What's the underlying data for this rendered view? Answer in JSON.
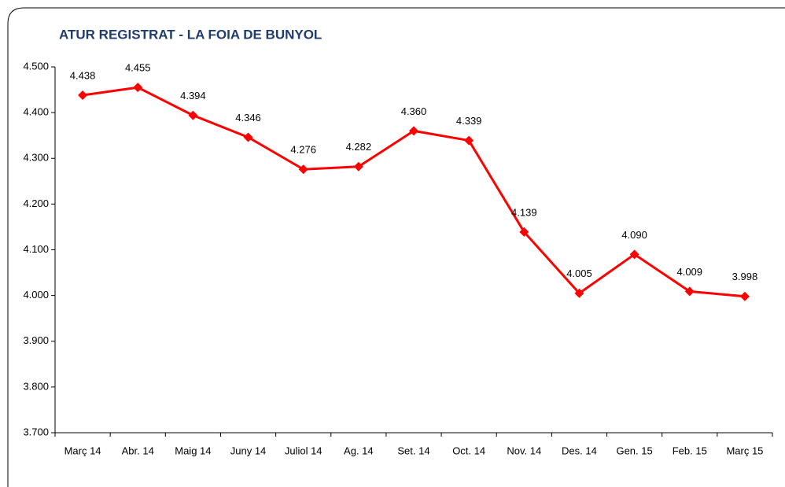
{
  "chart_data": {
    "type": "line",
    "title": "ATUR REGISTRAT - LA FOIA DE BUNYOL",
    "categories": [
      "Març 14",
      "Abr. 14",
      "Maig 14",
      "Juny 14",
      "Juliol 14",
      "Ag. 14",
      "Set. 14",
      "Oct. 14",
      "Nov. 14",
      "Des. 14",
      "Gen. 15",
      "Feb. 15",
      "Març 15"
    ],
    "series": [
      {
        "color": "#ff0000",
        "values": [
          4438,
          4455,
          4394,
          4346,
          4276,
          4282,
          4360,
          4339,
          4139,
          4005,
          4090,
          4009,
          3998
        ],
        "value_labels": [
          "4.438",
          "4.455",
          "4.394",
          "4.346",
          "4.276",
          "4.282",
          "4.360",
          "4.339",
          "4.139",
          "4.005",
          "4.090",
          "4.009",
          "3.998"
        ]
      }
    ],
    "ylim": [
      3700,
      4500
    ],
    "yticks": [
      {
        "value": 3700,
        "label": "3.700"
      },
      {
        "value": 3800,
        "label": "3.800"
      },
      {
        "value": 3900,
        "label": "3.900"
      },
      {
        "value": 4000,
        "label": "4.000"
      },
      {
        "value": 4100,
        "label": "4.100"
      },
      {
        "value": 4200,
        "label": "4.200"
      },
      {
        "value": 4300,
        "label": "4.300"
      },
      {
        "value": 4400,
        "label": "4.400"
      },
      {
        "value": 4500,
        "label": "4.500"
      }
    ],
    "grid": false
  }
}
